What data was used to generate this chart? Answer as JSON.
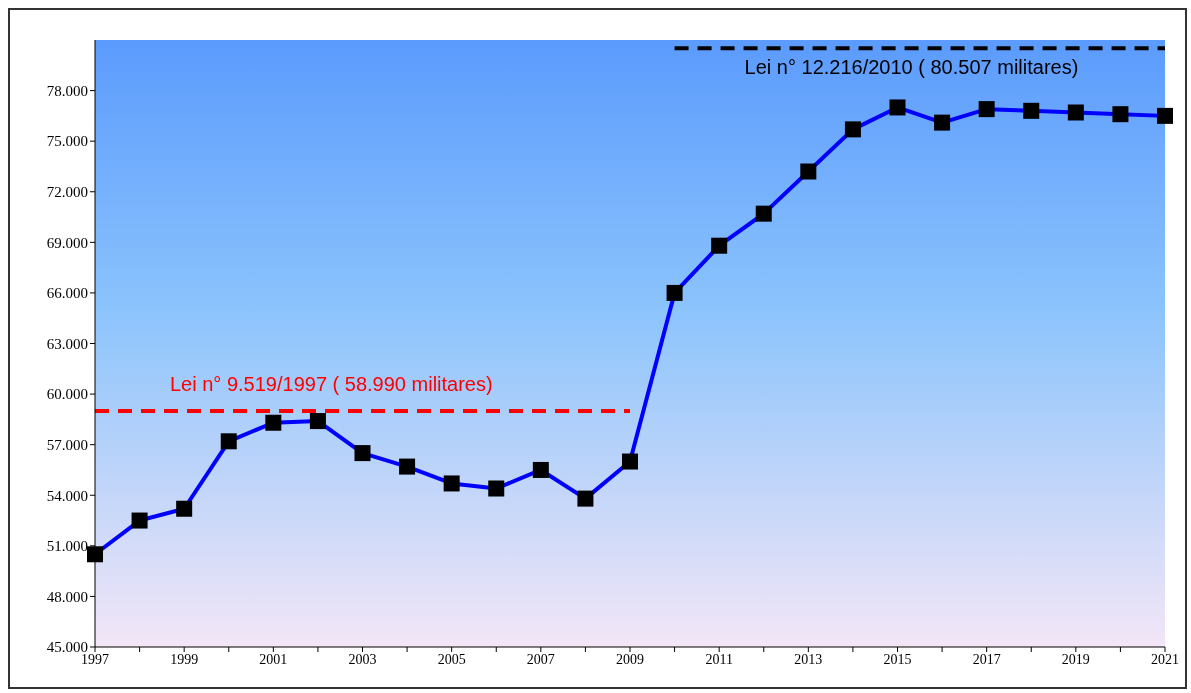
{
  "chart_data": {
    "type": "line",
    "categories": [
      "1997",
      null,
      "1999",
      null,
      "2001",
      null,
      "2003",
      null,
      "2005",
      null,
      "2007",
      null,
      "2009",
      null,
      "2011",
      null,
      "2013",
      null,
      "2015",
      null,
      "2017",
      null,
      "2019",
      null,
      "2021"
    ],
    "series": [
      {
        "color": "#0000ff",
        "values": [
          50500,
          52500,
          53200,
          57200,
          58300,
          58400,
          56500,
          55700,
          54700,
          54400,
          55500,
          53800,
          56000,
          66000,
          68800,
          70700,
          73200,
          75700,
          77000,
          76100,
          76900,
          76800,
          76700,
          76600,
          76500
        ]
      },
      {
        "name": "Lei n° 9.519/1997 ( 58.990 militares)",
        "color": "#ff0000",
        "line_style": "dashed",
        "marker": "none",
        "values": [
          58990,
          58990,
          58990,
          58990,
          58990,
          58990,
          58990,
          58990,
          58990,
          58990,
          58990,
          58990,
          58990,
          null,
          null,
          null,
          null,
          null,
          null,
          null,
          null,
          null,
          null,
          null,
          null
        ]
      },
      {
        "name": "Lei n° 12.216/2010 ( 80.507 militares)",
        "color": "#000000",
        "line_style": "dashed",
        "marker": "none",
        "values": [
          null,
          null,
          null,
          null,
          null,
          null,
          null,
          null,
          null,
          null,
          null,
          null,
          null,
          80507,
          80507,
          80507,
          80507,
          80507,
          80507,
          80507,
          80507,
          80507,
          80507,
          80507,
          80507
        ]
      }
    ],
    "marker": "square",
    "line_style": "solid",
    "ylim": [
      45000,
      81000
    ],
    "yticks": [
      {
        "value": 45000,
        "label": "45.000"
      },
      {
        "value": 48000,
        "label": "48.000"
      },
      {
        "value": 51000,
        "label": "51.000"
      },
      {
        "value": 54000,
        "label": "54.000"
      },
      {
        "value": 57000,
        "label": "57.000"
      },
      {
        "value": 60000,
        "label": "60.000"
      },
      {
        "value": 63000,
        "label": "63.000"
      },
      {
        "value": 66000,
        "label": "66.000"
      },
      {
        "value": 69000,
        "label": "69.000"
      },
      {
        "value": 72000,
        "label": "72.000"
      },
      {
        "value": 75000,
        "label": "75.000"
      },
      {
        "value": 78000,
        "label": "78.000"
      }
    ]
  }
}
